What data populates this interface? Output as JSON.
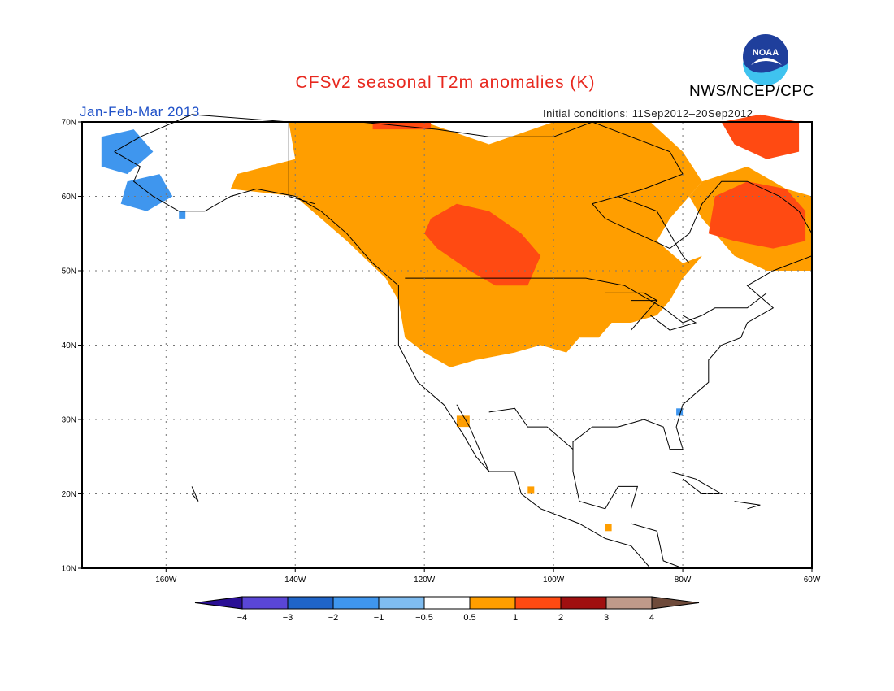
{
  "title": "CFSv2 seasonal T2m anomalies (K)",
  "period": "Jan-Feb-Mar 2013",
  "initial_conditions": "Initial conditions: 11Sep2012–20Sep2012",
  "agency": "NWS/NCEP/CPC",
  "logo_text": "NOAA",
  "map": {
    "lon_range": [
      -173,
      -60
    ],
    "lat_range": [
      10,
      70
    ],
    "lon_ticks": [
      {
        "value": -160,
        "label": "160W"
      },
      {
        "value": -140,
        "label": "140W"
      },
      {
        "value": -120,
        "label": "120W"
      },
      {
        "value": -100,
        "label": "100W"
      },
      {
        "value": -80,
        "label": "80W"
      },
      {
        "value": -60,
        "label": "60W"
      }
    ],
    "lat_ticks": [
      {
        "value": 70,
        "label": "70N"
      },
      {
        "value": 60,
        "label": "60N"
      },
      {
        "value": 50,
        "label": "50N"
      },
      {
        "value": 40,
        "label": "40N"
      },
      {
        "value": 30,
        "label": "30N"
      },
      {
        "value": 20,
        "label": "20N"
      },
      {
        "value": 10,
        "label": "10N"
      }
    ],
    "grid": "dotted"
  },
  "colorbar": {
    "labels": [
      "−4",
      "−3",
      "−2",
      "−1",
      "−0.5",
      "0.5",
      "1",
      "2",
      "3",
      "4"
    ],
    "colors": [
      "#2a0f95",
      "#5a46d6",
      "#1f64c8",
      "#3f96ee",
      "#7fbcf0",
      "#ffffff",
      "#ff9e00",
      "#ff4a12",
      "#a01010",
      "#c09a8a",
      "#6e4a3a"
    ]
  }
}
